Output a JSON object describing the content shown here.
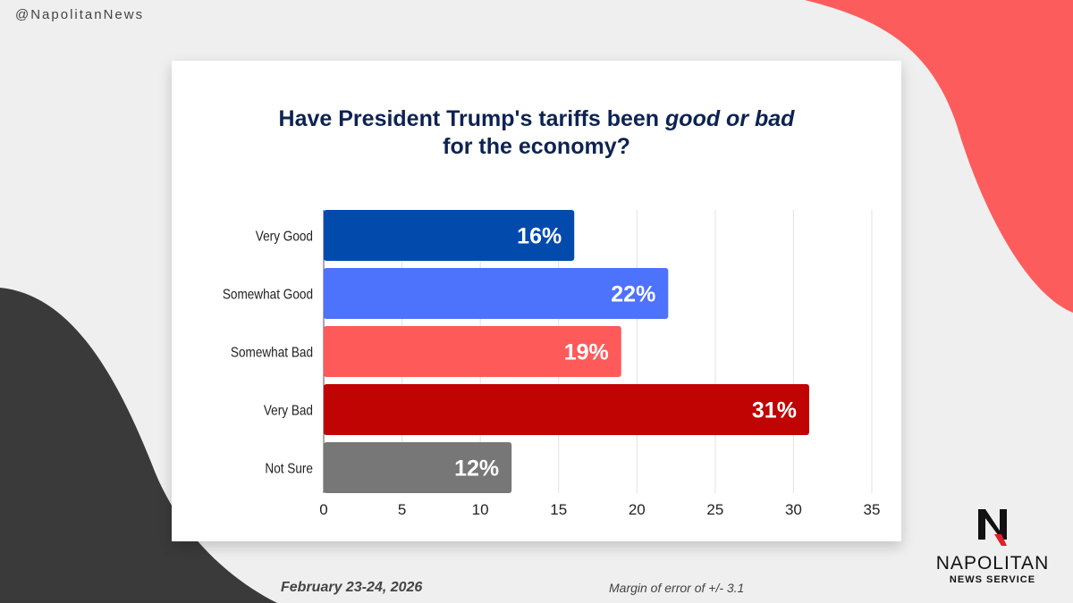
{
  "handle": "@NapolitanNews",
  "chart_data": {
    "type": "bar",
    "orientation": "horizontal",
    "title_parts": [
      "Have President Trump's tariffs been ",
      "good or bad",
      "for the economy?"
    ],
    "categories": [
      "Very Good",
      "Somewhat Good",
      "Somewhat Bad",
      "Very Bad",
      "Not Sure"
    ],
    "values": [
      16,
      22,
      19,
      31,
      12
    ],
    "data_labels": [
      "16%",
      "22%",
      "19%",
      "31%",
      "12%"
    ],
    "colors": [
      "#034aad",
      "#4d72fb",
      "#fe5a5a",
      "#c00303",
      "#777777"
    ],
    "xlim": [
      0,
      35
    ],
    "xticks": [
      0,
      5,
      10,
      15,
      20,
      25,
      30,
      35
    ],
    "grid": true,
    "xlabel": "",
    "ylabel": ""
  },
  "footer": {
    "date": "February 23-24, 2026",
    "margin_of_error": "Margin of error of +/- 3.1"
  },
  "logo": {
    "name": "NAPOLITAN",
    "sub": "NEWS SERVICE"
  }
}
